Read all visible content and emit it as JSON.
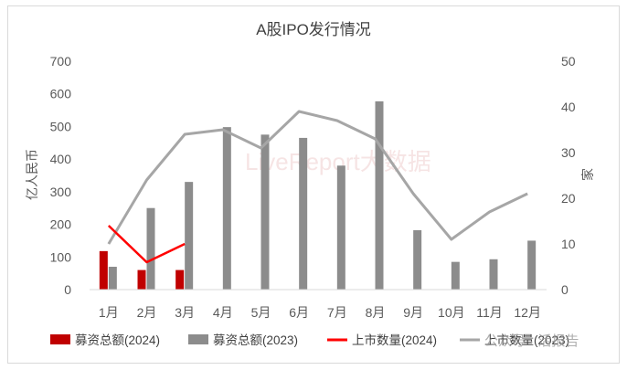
{
  "chart_data": {
    "type": "bar",
    "title": "A股IPO发行情况",
    "categories": [
      "1月",
      "2月",
      "3月",
      "4月",
      "5月",
      "6月",
      "7月",
      "8月",
      "9月",
      "10月",
      "11月",
      "12月"
    ],
    "y_left": {
      "label": "亿人民币",
      "min": 0,
      "max": 700,
      "ticks": [
        "0",
        "100",
        "200",
        "300",
        "400",
        "500",
        "600",
        "700"
      ]
    },
    "y_right": {
      "label": "家",
      "min": 0,
      "max": 50,
      "ticks": [
        "0",
        "10",
        "20",
        "30",
        "40",
        "50"
      ]
    },
    "series": [
      {
        "name": "募资总额(2024)",
        "type": "bar",
        "axis": "left",
        "color": "#c00000",
        "values": [
          118,
          60,
          60,
          null,
          null,
          null,
          null,
          null,
          null,
          null,
          null,
          null
        ]
      },
      {
        "name": "募资总额(2023)",
        "type": "bar",
        "axis": "left",
        "color": "#8c8c8c",
        "values": [
          70,
          250,
          330,
          498,
          475,
          465,
          380,
          577,
          182,
          85,
          93,
          150
        ]
      },
      {
        "name": "上市数量(2024)",
        "type": "line",
        "axis": "right",
        "color": "#ff0000",
        "values": [
          14,
          6,
          10,
          null,
          null,
          null,
          null,
          null,
          null,
          null,
          null,
          null
        ]
      },
      {
        "name": "上市数量(2023)",
        "type": "line",
        "axis": "right",
        "color": "#a6a6a6",
        "values": [
          10,
          24,
          34,
          35,
          31,
          39,
          37,
          33,
          21,
          11,
          17,
          21
        ]
      }
    ],
    "legend_position": "bottom",
    "grid": false
  },
  "watermark": {
    "main": "LiveReport大数据",
    "footer": "公众号 · 活报告"
  }
}
